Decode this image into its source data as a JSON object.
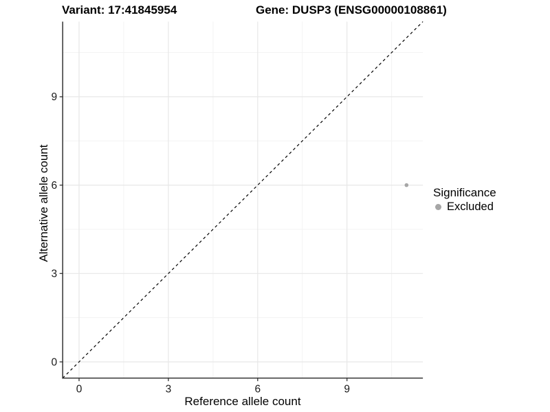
{
  "header": {
    "title_left": "Variant: 17:41845954",
    "title_right": "Gene: DUSP3 (ENSG00000108861)"
  },
  "chart_data": {
    "type": "scatter",
    "titles": {
      "left": "Variant: 17:41845954",
      "right": "Gene: DUSP3 (ENSG00000108861)"
    },
    "xlabel": "Reference allele count",
    "ylabel": "Alternative allele count",
    "x_ticks": [
      0,
      3,
      6,
      9
    ],
    "y_ticks": [
      0,
      3,
      6,
      9
    ],
    "x_minor_ticks": [
      1.5,
      4.5,
      7.5,
      10.5
    ],
    "y_minor_ticks": [
      1.5,
      4.5,
      7.5,
      10.5
    ],
    "xlim": [
      -0.55,
      11.55
    ],
    "ylim": [
      -0.55,
      11.55
    ],
    "grid": true,
    "series": [
      {
        "name": "Excluded",
        "points": [
          {
            "x": 11,
            "y": 6
          }
        ]
      }
    ],
    "reference_line": {
      "kind": "identity y=x",
      "style": "dashed",
      "color": "#000000"
    },
    "legend": {
      "title": "Significance",
      "position": "right",
      "items": [
        {
          "label": "Excluded",
          "color": "#a6a6a6"
        }
      ]
    },
    "colors": {
      "point": "#a6a6a6",
      "grid_major": "#e7e7e7",
      "grid_minor": "#f3f3f3",
      "axis": "#333333",
      "tick_text": "#1a1a1a",
      "text": "#000000",
      "background": "#ffffff"
    }
  }
}
